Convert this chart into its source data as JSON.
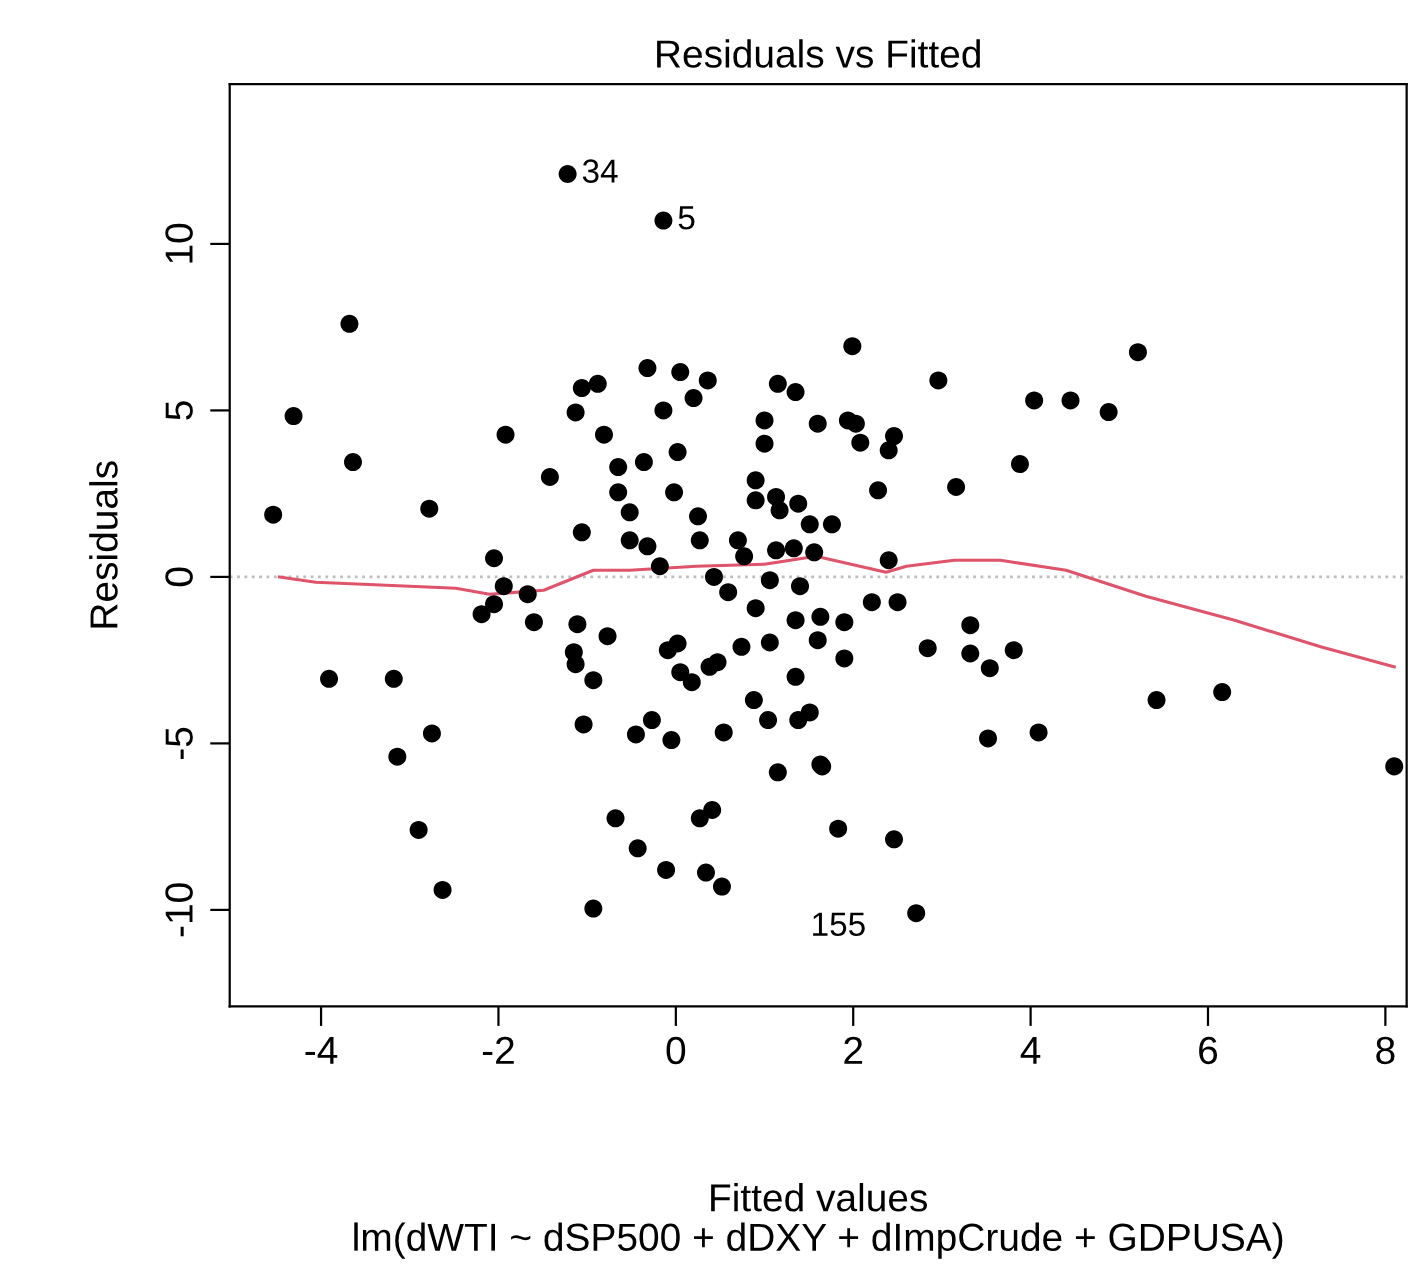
{
  "chart_data": {
    "type": "scatter",
    "title": "Residuals vs Fitted",
    "xlabel": "Fitted values",
    "ylabel": "Residuals",
    "annotations": [
      {
        "text": "34",
        "x": -1.22,
        "y": 12.1
      },
      {
        "text": "5",
        "x": -0.14,
        "y": 10.7
      },
      {
        "text": "155",
        "x": 2.71,
        "y": -10.1
      },
      "lm(dWTI ~ dSP500 + dDXY + dImpCrude + GDPUSA)"
    ],
    "xlim": [
      -5.03,
      8.24
    ],
    "ylim": [
      -12.9,
      14.8
    ],
    "xticks": [
      -4,
      -2,
      0,
      2,
      4,
      6,
      8
    ],
    "yticks": [
      -10,
      -5,
      0,
      5,
      10
    ],
    "grid": false,
    "legend": false,
    "marker": "circle",
    "ref_lines": [
      {
        "axis": "y",
        "value": 0,
        "color": "#bebebe",
        "line_style": "dotted"
      }
    ],
    "series": [
      {
        "color": "#000000",
        "x": [
          -4.54,
          -4.31,
          -3.68,
          -3.64,
          -3.91,
          -3.18,
          -3.14,
          -2.78,
          -2.75,
          -2.9,
          -2.63,
          -1.92,
          -1.42,
          -2.05,
          -1.06,
          -1.13,
          -1.06,
          -0.88,
          -0.81,
          -0.65,
          -0.65,
          -0.52,
          -0.52,
          -0.36,
          -0.32,
          -0.14,
          0.02,
          -0.02,
          0.05,
          0.2,
          0.36,
          0.25,
          0.27,
          -0.32,
          -0.18,
          -1.22,
          -0.14,
          0.7,
          0.77,
          0.9,
          0.9,
          1.0,
          1.0,
          1.13,
          1.17,
          1.15,
          1.35,
          1.38,
          1.51,
          1.6,
          1.13,
          1.33,
          1.56,
          1.99,
          1.94,
          2.03,
          2.08,
          2.46,
          2.4,
          2.96,
          2.28,
          3.16,
          3.88,
          4.04,
          4.45,
          4.88,
          5.21,
          1.76,
          2.4,
          -1.94,
          -2.05,
          -2.19,
          -1.67,
          -1.6,
          -1.11,
          -0.77,
          -1.15,
          -1.13,
          -0.93,
          -1.04,
          -0.68,
          -0.43,
          -0.93,
          -0.11,
          0.34,
          0.52,
          0.27,
          0.41,
          -0.27,
          -0.45,
          -0.05,
          0.54,
          -0.09,
          0.02,
          0.05,
          0.18,
          0.38,
          0.47,
          0.74,
          0.88,
          1.04,
          1.15,
          1.35,
          1.38,
          1.51,
          1.63,
          1.6,
          1.63,
          1.35,
          1.06,
          0.9,
          1.4,
          0.59,
          0.43,
          1.06,
          2.21,
          2.5,
          1.9,
          1.9,
          2.84,
          3.32,
          3.32,
          3.54,
          3.81,
          1.65,
          1.83,
          2.46,
          2.71,
          3.52,
          4.09,
          5.42,
          6.16,
          8.1
        ],
        "values": [
          1.87,
          4.83,
          7.6,
          3.45,
          -3.06,
          -3.06,
          -5.4,
          2.05,
          -4.7,
          -7.6,
          -9.4,
          4.27,
          3.0,
          0.56,
          1.34,
          4.94,
          5.67,
          5.8,
          4.27,
          3.3,
          2.54,
          1.94,
          1.1,
          3.45,
          6.27,
          5.0,
          3.75,
          2.54,
          6.15,
          5.37,
          5.9,
          1.82,
          1.1,
          0.92,
          0.32,
          12.1,
          10.7,
          1.1,
          0.62,
          2.9,
          2.3,
          4.7,
          4.0,
          2.4,
          2.0,
          5.8,
          5.55,
          2.2,
          1.58,
          4.6,
          0.8,
          0.86,
          0.74,
          6.93,
          4.7,
          4.6,
          4.03,
          4.23,
          3.8,
          5.9,
          2.6,
          2.7,
          3.39,
          5.3,
          5.3,
          4.95,
          6.75,
          1.58,
          0.5,
          -0.28,
          -0.82,
          -1.12,
          -0.52,
          -1.36,
          -1.42,
          -1.78,
          -2.26,
          -2.62,
          -3.1,
          -4.43,
          -7.25,
          -8.15,
          -9.96,
          -8.8,
          -8.88,
          -9.3,
          -7.25,
          -7.0,
          -4.3,
          -4.73,
          -4.9,
          -4.67,
          -2.2,
          -2.0,
          -2.86,
          -3.16,
          -2.7,
          -2.56,
          -2.1,
          -3.7,
          -4.3,
          -5.87,
          -3.0,
          -4.3,
          -4.07,
          -5.63,
          -1.9,
          -1.2,
          -1.3,
          -1.97,
          -0.94,
          -0.28,
          -0.46,
          0.0,
          -0.1,
          -0.76,
          -0.76,
          -1.36,
          -2.45,
          -2.14,
          -1.45,
          -2.3,
          -2.74,
          -2.2,
          -5.69,
          -7.56,
          -7.88,
          -10.1,
          -4.85,
          -4.67,
          -3.7,
          -3.46,
          -5.69
        ]
      },
      {
        "type": "line",
        "color": "#df536b",
        "marker": "none",
        "line_style": "solid",
        "x": [
          -4.47,
          -4.06,
          -3.0,
          -2.48,
          -2.1,
          -1.49,
          -0.93,
          -0.52,
          0.23,
          1.0,
          1.58,
          2.37,
          2.6,
          3.14,
          3.66,
          4.4,
          5.3,
          6.3,
          7.27,
          8.1
        ],
        "values": [
          0,
          -0.16,
          -0.28,
          -0.34,
          -0.52,
          -0.4,
          0.2,
          0.2,
          0.32,
          0.38,
          0.62,
          0.14,
          0.32,
          0.5,
          0.5,
          0.2,
          -0.58,
          -1.3,
          -2.1,
          -2.7
        ]
      }
    ]
  }
}
